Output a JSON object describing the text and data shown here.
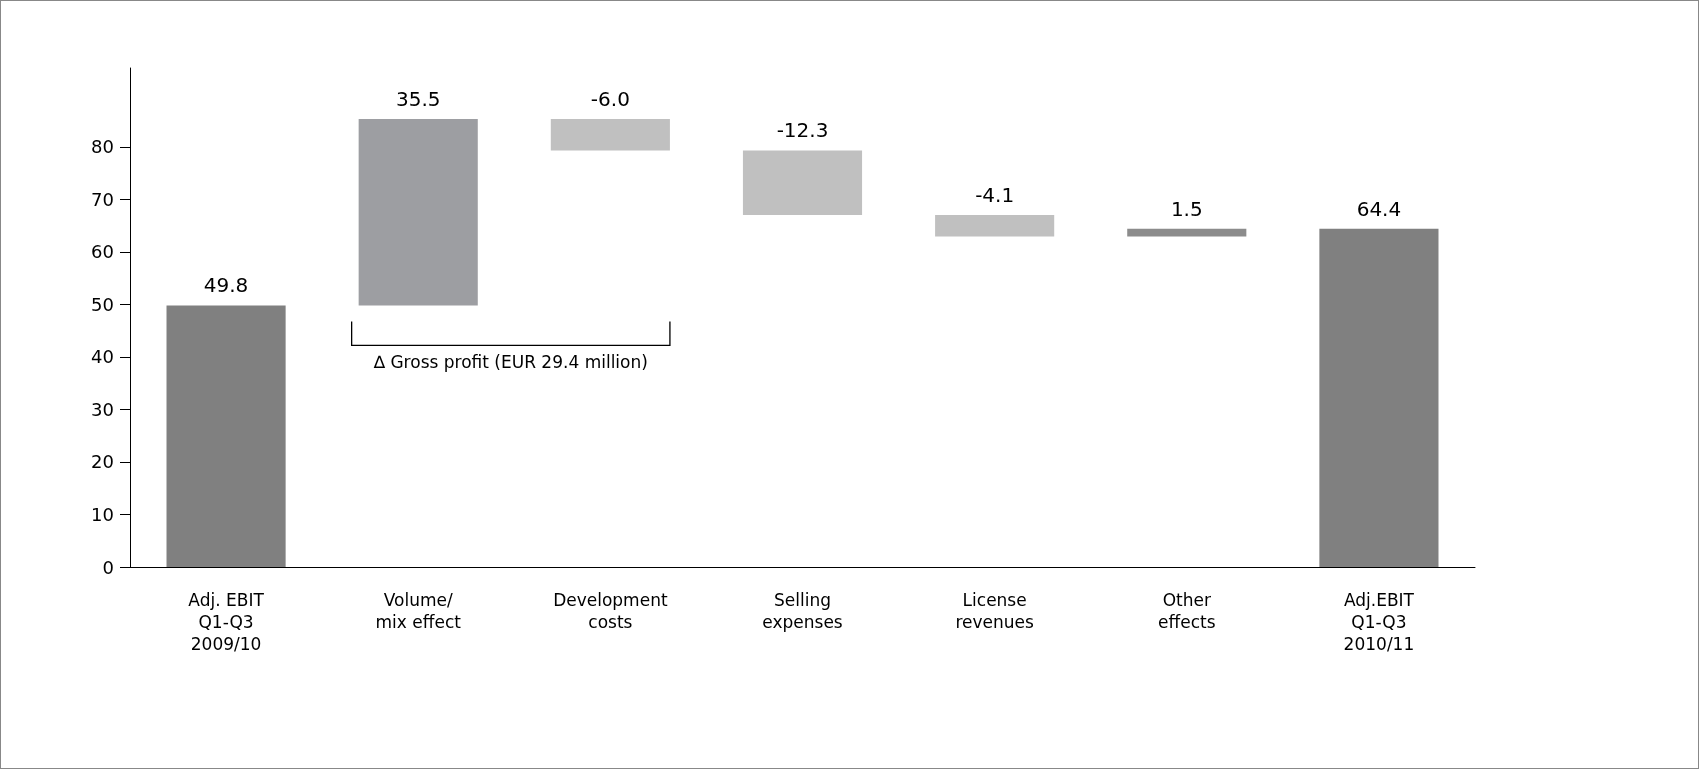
{
  "chart_data": {
    "type": "bar",
    "categories": [
      "Adj. EBIT\nQ1-Q3\n2009/10",
      "Volume/\nmix effect",
      "Development\ncosts",
      "Selling\nexpenses",
      "License\nrevenues",
      "Other\neffects",
      "Adj.EBIT\nQ1-Q3\n2010/11"
    ],
    "values": [
      49.8,
      35.5,
      -6.0,
      -12.3,
      -4.1,
      1.5,
      64.4
    ],
    "base": [
      0,
      49.8,
      85.3,
      79.3,
      67.0,
      62.9,
      0
    ],
    "colors": [
      "#808080",
      "#9d9ea2",
      "#c0c0c0",
      "#c0c0c0",
      "#c0c0c0",
      "#8c8c8c",
      "#808080"
    ],
    "ylim": [
      0,
      95
    ],
    "yticks": [
      0,
      10,
      20,
      30,
      40,
      50,
      60,
      70,
      80
    ],
    "value_labels": [
      "49.8",
      "35.5",
      "-6.0",
      "-12.3",
      "-4.1",
      "1.5",
      "64.4"
    ],
    "grid": false,
    "annotations": [
      "∆ Gross profit (EUR 29.4 million)"
    ]
  }
}
